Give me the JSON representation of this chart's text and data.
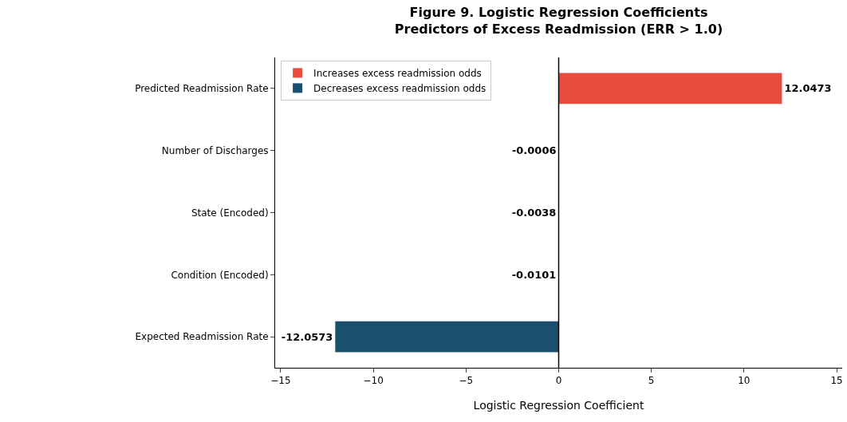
{
  "chart_data": {
    "type": "bar",
    "orientation": "horizontal",
    "title": "Figure 9. Logistic Regression Coefficients\nPredictors of Excess Readmission (ERR > 1.0)",
    "xlabel": "Logistic Regression Coefficient",
    "categories": [
      "Predicted Readmission Rate",
      "Number of Discharges",
      "State (Encoded)",
      "Condition (Encoded)",
      "Expected Readmission Rate"
    ],
    "series": [
      {
        "name": "Increases excess readmission odds",
        "color": "#e74c3c",
        "values": [
          12.0473,
          null,
          null,
          null,
          null
        ]
      },
      {
        "name": "Decreases excess readmission odds",
        "color": "#1b4f6e",
        "values": [
          null,
          -0.0006,
          -0.0038,
          -0.0101,
          -12.0573
        ]
      }
    ],
    "xlim": [
      -15.3,
      15.3
    ],
    "xticks": [
      {
        "value": -15,
        "label": "−15"
      },
      {
        "value": -10,
        "label": "−10"
      },
      {
        "value": -5,
        "label": "−5"
      },
      0,
      5,
      10,
      15
    ],
    "ref_lines": [
      {
        "axis": "x",
        "value": 0,
        "color": "#000000"
      }
    ],
    "data_labels": true,
    "grid": false,
    "legend": "top left"
  }
}
